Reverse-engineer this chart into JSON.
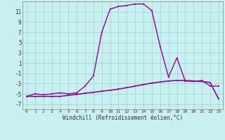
{
  "x": [
    0,
    1,
    2,
    3,
    4,
    5,
    6,
    7,
    8,
    9,
    10,
    11,
    12,
    13,
    14,
    15,
    16,
    17,
    18,
    19,
    20,
    21,
    22,
    23
  ],
  "line_main": [
    -5.5,
    -5.0,
    -5.2,
    -5.0,
    -4.8,
    -5.0,
    -4.8,
    -3.5,
    -1.5,
    7.0,
    11.5,
    12.0,
    12.2,
    12.5,
    12.5,
    11.2,
    4.2,
    -1.7,
    2.0,
    -2.5,
    -2.6,
    -2.4,
    -3.5,
    -3.5
  ],
  "line_trend": [
    -5.5,
    -5.5,
    -5.5,
    -5.5,
    -5.5,
    -5.3,
    -5.1,
    -4.9,
    -4.7,
    -4.5,
    -4.3,
    -4.1,
    -3.8,
    -3.5,
    -3.2,
    -2.9,
    -2.7,
    -2.5,
    -2.4,
    -2.4,
    -2.5,
    -2.6,
    -2.8,
    -6.0
  ],
  "line_color": "#990099",
  "bg_color": "#c8f0f0",
  "grid_color": "#a0d8d8",
  "xlabel": "Windchill (Refroidissement éolien,°C)",
  "yticks": [
    11,
    9,
    7,
    5,
    3,
    1,
    -1,
    -3,
    -5,
    -7
  ],
  "xticks": [
    0,
    1,
    2,
    3,
    4,
    5,
    6,
    7,
    8,
    9,
    10,
    11,
    12,
    13,
    14,
    15,
    16,
    17,
    18,
    19,
    20,
    21,
    22,
    23
  ],
  "ylim": [
    -8.0,
    13.0
  ],
  "xlim": [
    -0.5,
    23.5
  ],
  "figsize": [
    3.2,
    2.0
  ],
  "dpi": 100
}
